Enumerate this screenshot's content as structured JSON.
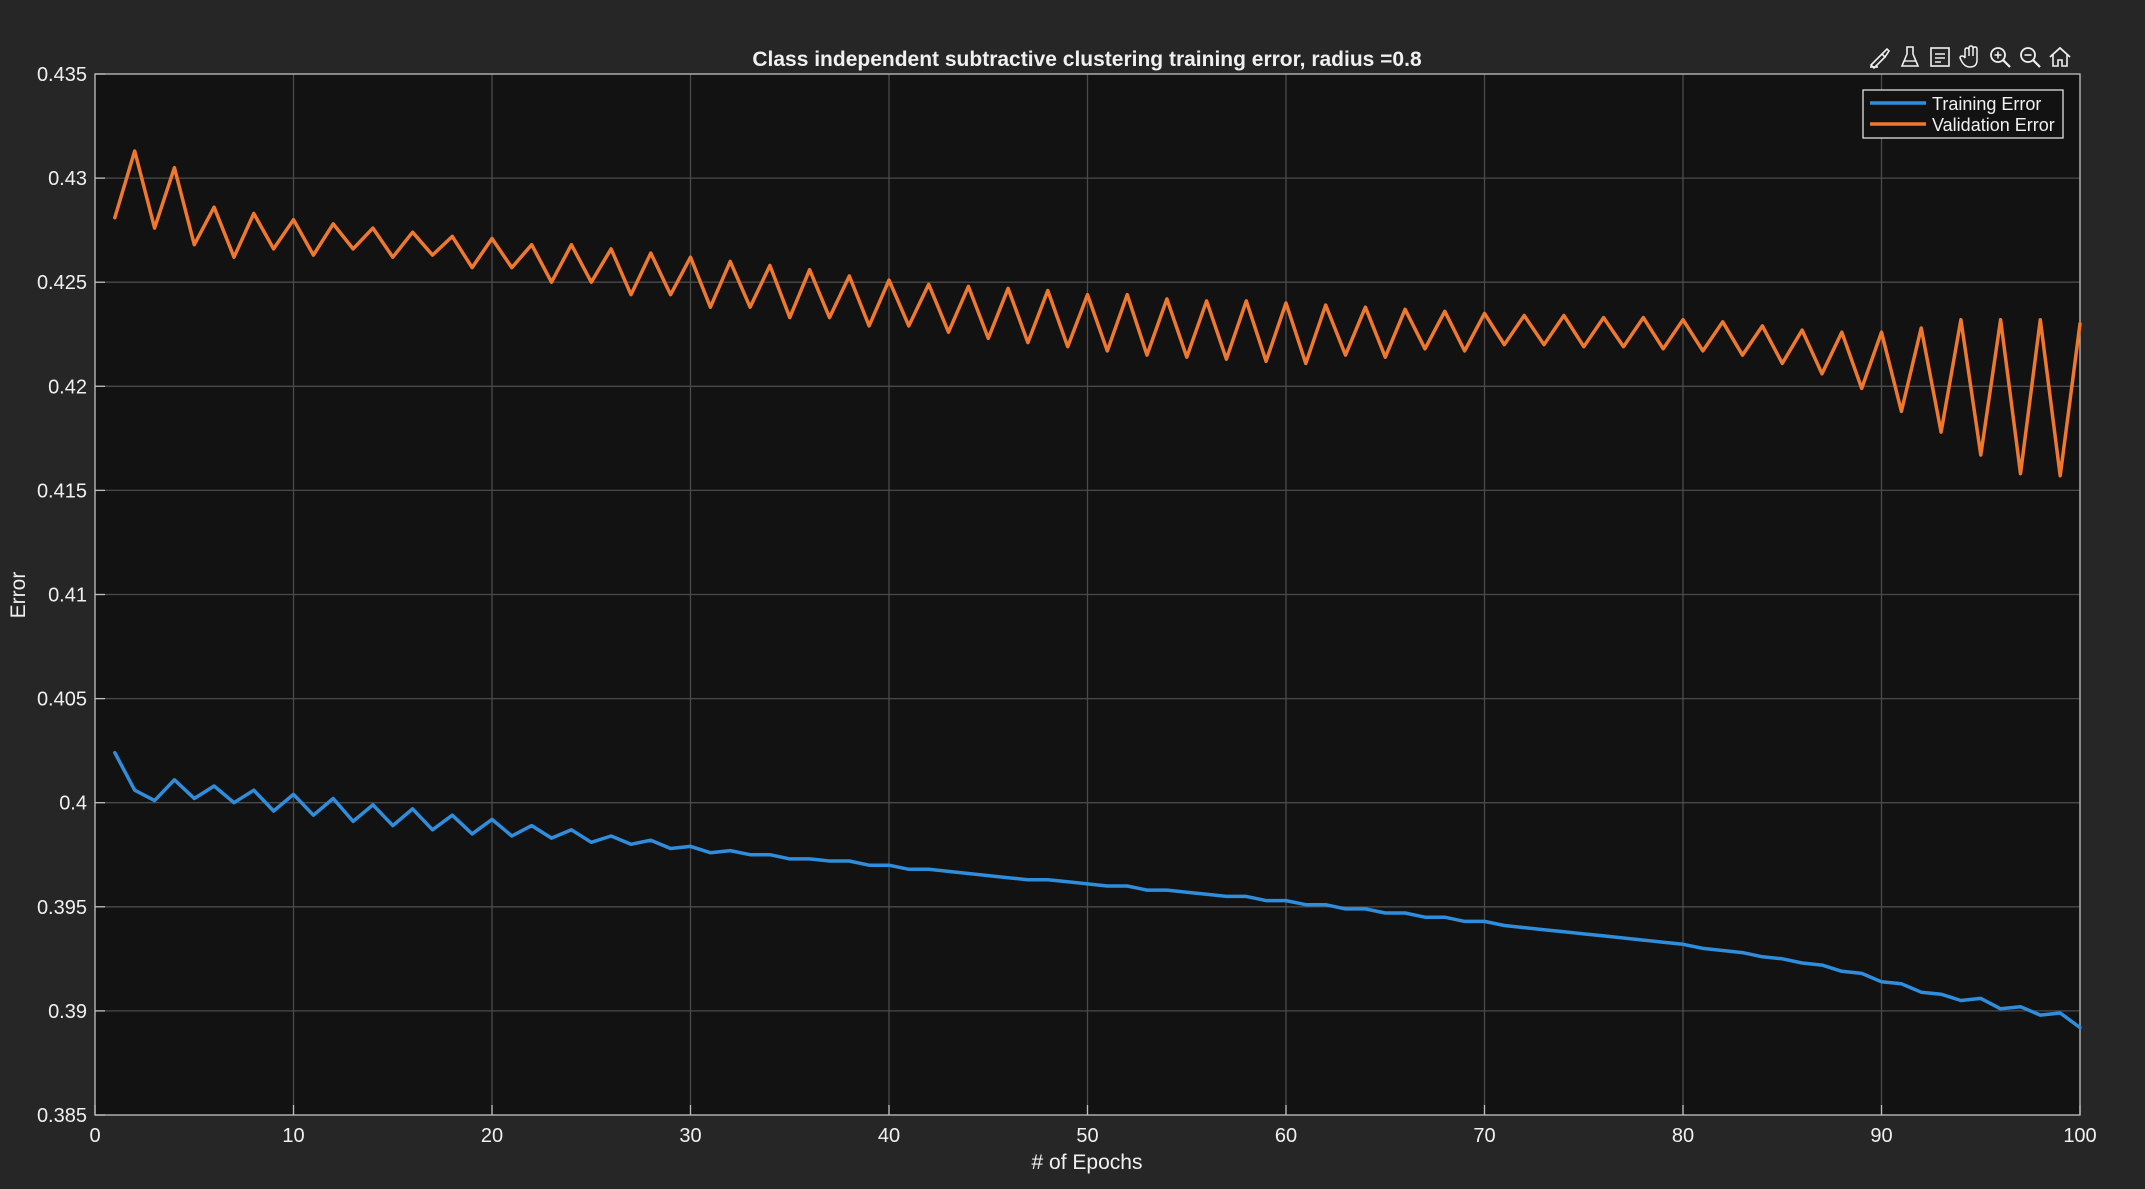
{
  "toolbar": {
    "icons": [
      "brush-data-icon",
      "clean-data-icon",
      "datatip-icon",
      "pan-icon",
      "zoom-in-icon",
      "zoom-out-icon",
      "home-icon"
    ]
  },
  "colors": {
    "figure_bg": "#262626",
    "axes_bg": "#121212",
    "training": "#2f8ddb",
    "validation": "#f0782d",
    "text": "#f0f0f0"
  },
  "chart_data": {
    "type": "line",
    "title": "Class independent subtractive clustering training error, radius =0.8",
    "xlabel": "# of Epochs",
    "ylabel": "Error",
    "xlim": [
      0,
      100
    ],
    "ylim": [
      0.385,
      0.435
    ],
    "xticks": [
      0,
      10,
      20,
      30,
      40,
      50,
      60,
      70,
      80,
      90,
      100
    ],
    "xtick_labels": [
      "0",
      "10",
      "20",
      "30",
      "40",
      "50",
      "60",
      "70",
      "80",
      "90",
      "100"
    ],
    "yticks": [
      0.385,
      0.39,
      0.395,
      0.4,
      0.405,
      0.41,
      0.415,
      0.42,
      0.425,
      0.43,
      0.435
    ],
    "ytick_labels": [
      "0.385",
      "0.39",
      "0.395",
      "0.4",
      "0.405",
      "0.41",
      "0.415",
      "0.42",
      "0.425",
      "0.43",
      "0.435"
    ],
    "grid": true,
    "legend_position": "top-right",
    "x": [
      1,
      2,
      3,
      4,
      5,
      6,
      7,
      8,
      9,
      10,
      11,
      12,
      13,
      14,
      15,
      16,
      17,
      18,
      19,
      20,
      21,
      22,
      23,
      24,
      25,
      26,
      27,
      28,
      29,
      30,
      31,
      32,
      33,
      34,
      35,
      36,
      37,
      38,
      39,
      40,
      41,
      42,
      43,
      44,
      45,
      46,
      47,
      48,
      49,
      50,
      51,
      52,
      53,
      54,
      55,
      56,
      57,
      58,
      59,
      60,
      61,
      62,
      63,
      64,
      65,
      66,
      67,
      68,
      69,
      70,
      71,
      72,
      73,
      74,
      75,
      76,
      77,
      78,
      79,
      80,
      81,
      82,
      83,
      84,
      85,
      86,
      87,
      88,
      89,
      90,
      91,
      92,
      93,
      94,
      95,
      96,
      97,
      98,
      99,
      100
    ],
    "series": [
      {
        "name": "Training Error",
        "color": "#2f8ddb",
        "values": [
          0.4024,
          0.4006,
          0.4001,
          0.4011,
          0.4002,
          0.4008,
          0.4,
          0.4006,
          0.3996,
          0.4004,
          0.3994,
          0.4002,
          0.3991,
          0.3999,
          0.3989,
          0.3997,
          0.3987,
          0.3994,
          0.3985,
          0.3992,
          0.3984,
          0.3989,
          0.3983,
          0.3987,
          0.3981,
          0.3984,
          0.398,
          0.3982,
          0.3978,
          0.3979,
          0.3976,
          0.3977,
          0.3975,
          0.3975,
          0.3973,
          0.3973,
          0.3972,
          0.3972,
          0.397,
          0.397,
          0.3968,
          0.3968,
          0.3967,
          0.3966,
          0.3965,
          0.3964,
          0.3963,
          0.3963,
          0.3962,
          0.3961,
          0.396,
          0.396,
          0.3958,
          0.3958,
          0.3957,
          0.3956,
          0.3955,
          0.3955,
          0.3953,
          0.3953,
          0.3951,
          0.3951,
          0.3949,
          0.3949,
          0.3947,
          0.3947,
          0.3945,
          0.3945,
          0.3943,
          0.3943,
          0.3941,
          0.394,
          0.3939,
          0.3938,
          0.3937,
          0.3936,
          0.3935,
          0.3934,
          0.3933,
          0.3932,
          0.393,
          0.3929,
          0.3928,
          0.3926,
          0.3925,
          0.3923,
          0.3922,
          0.3919,
          0.3918,
          0.3914,
          0.3913,
          0.3909,
          0.3908,
          0.3905,
          0.3906,
          0.3901,
          0.3902,
          0.3898,
          0.3899,
          0.3892
        ]
      },
      {
        "name": "Validation Error",
        "color": "#f0782d",
        "values": [
          0.4281,
          0.4313,
          0.4276,
          0.4305,
          0.4268,
          0.4286,
          0.4262,
          0.4283,
          0.4266,
          0.428,
          0.4263,
          0.4278,
          0.4266,
          0.4276,
          0.4262,
          0.4274,
          0.4263,
          0.4272,
          0.4257,
          0.4271,
          0.4257,
          0.4268,
          0.425,
          0.4268,
          0.425,
          0.4266,
          0.4244,
          0.4264,
          0.4244,
          0.4262,
          0.4238,
          0.426,
          0.4238,
          0.4258,
          0.4233,
          0.4256,
          0.4233,
          0.4253,
          0.4229,
          0.4251,
          0.4229,
          0.4249,
          0.4226,
          0.4248,
          0.4223,
          0.4247,
          0.4221,
          0.4246,
          0.4219,
          0.4244,
          0.4217,
          0.4244,
          0.4215,
          0.4242,
          0.4214,
          0.4241,
          0.4213,
          0.4241,
          0.4212,
          0.424,
          0.4211,
          0.4239,
          0.4215,
          0.4238,
          0.4214,
          0.4237,
          0.4218,
          0.4236,
          0.4217,
          0.4235,
          0.422,
          0.4234,
          0.422,
          0.4234,
          0.4219,
          0.4233,
          0.4219,
          0.4233,
          0.4218,
          0.4232,
          0.4217,
          0.4231,
          0.4215,
          0.4229,
          0.4211,
          0.4227,
          0.4206,
          0.4226,
          0.4199,
          0.4226,
          0.4188,
          0.4228,
          0.4178,
          0.4232,
          0.4167,
          0.4232,
          0.4158,
          0.4232,
          0.4157,
          0.423
        ]
      }
    ]
  }
}
